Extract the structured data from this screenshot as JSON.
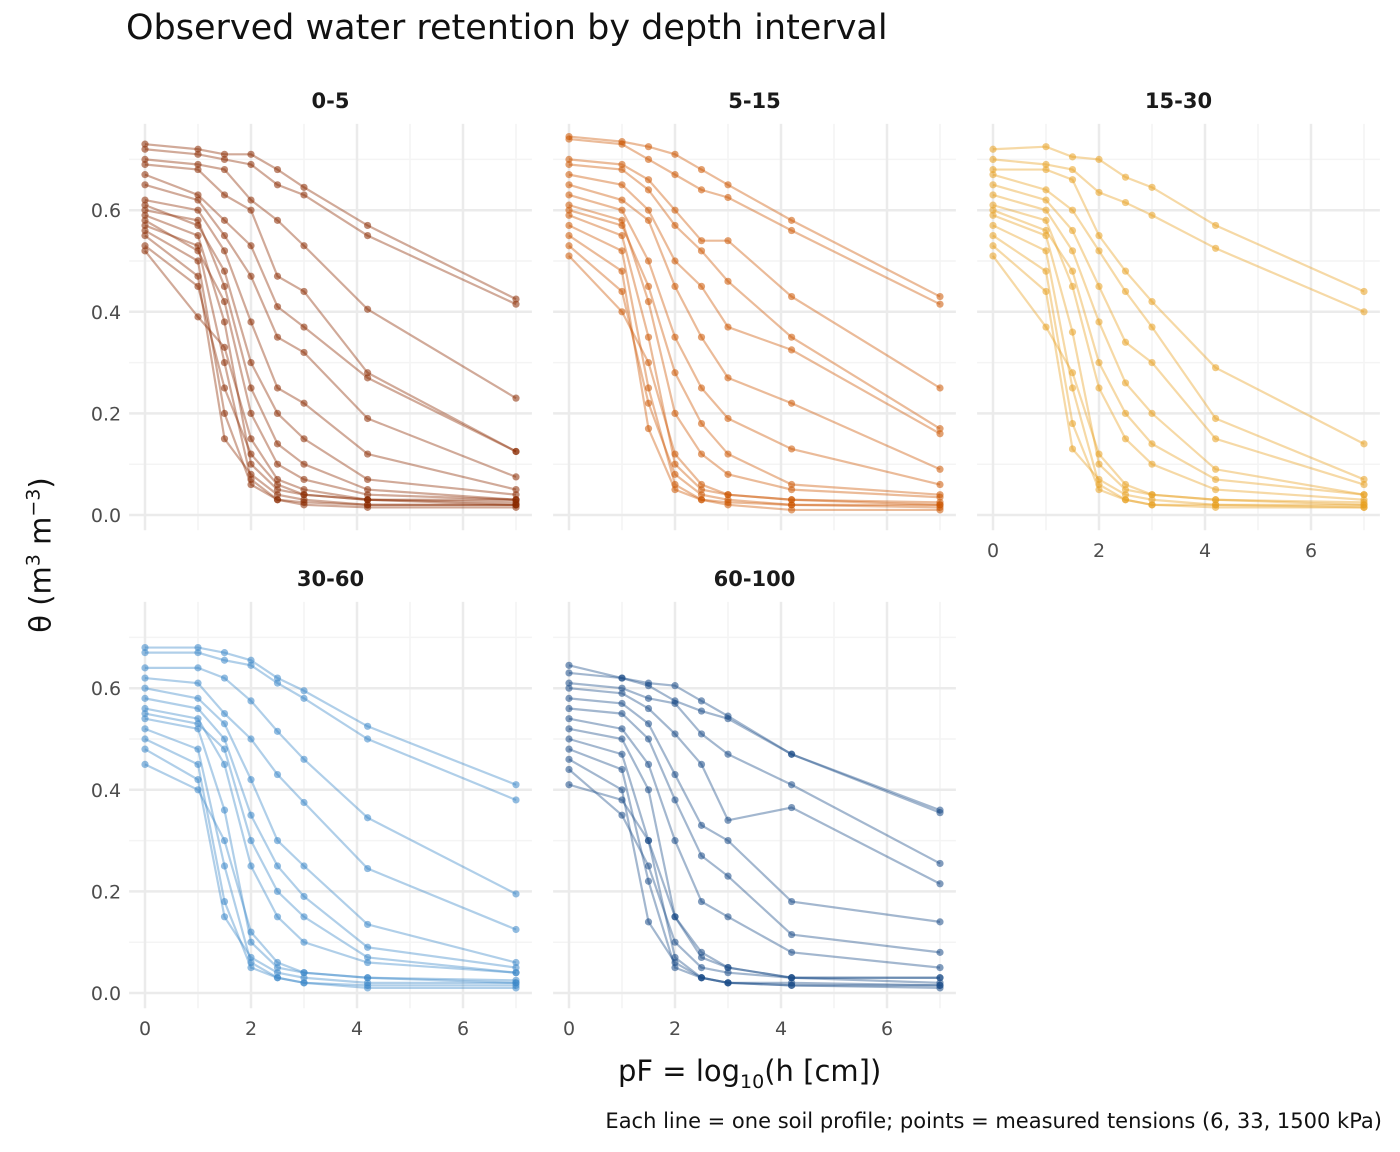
{
  "chart_data": {
    "type": "line",
    "title": "Observed water retention by depth interval",
    "caption": "Each line = one soil profile; points = measured tensions (6, 33, 1500 kPa)",
    "xlabel": {
      "prefix": "pF = log",
      "sub": "10",
      "suffix": "(h [cm])"
    },
    "ylabel": {
      "prefix": "θ (m",
      "sup1": "3",
      "mid": " m",
      "sup2": "−3",
      "suffix": ")"
    },
    "xlim": [
      -0.3,
      7.3
    ],
    "ylim": [
      -0.03,
      0.77
    ],
    "x_ticks": [
      0,
      2,
      4,
      6
    ],
    "x_tick_labels": [
      "0",
      "2",
      "4",
      "6"
    ],
    "y_ticks": [
      0,
      0.2,
      0.4,
      0.6
    ],
    "y_tick_labels": [
      "0.0",
      "0.2",
      "0.4",
      "0.6"
    ],
    "grid": true,
    "x": [
      0,
      1,
      1.5,
      2,
      2.5,
      3,
      4.2,
      7
    ],
    "facets": [
      {
        "label": "0-5",
        "color": "#8B2A00",
        "profiles": [
          [
            0.73,
            0.72,
            0.71,
            0.71,
            0.68,
            0.645,
            0.57,
            0.425
          ],
          [
            0.72,
            0.71,
            0.7,
            0.69,
            0.65,
            0.63,
            0.55,
            0.415
          ],
          [
            0.7,
            0.69,
            0.68,
            0.62,
            0.58,
            0.53,
            0.405,
            0.23
          ],
          [
            0.69,
            0.68,
            0.63,
            0.6,
            0.47,
            0.44,
            0.28,
            0.125
          ],
          [
            0.67,
            0.63,
            0.58,
            0.53,
            0.41,
            0.37,
            0.27,
            0.125
          ],
          [
            0.65,
            0.62,
            0.55,
            0.47,
            0.35,
            0.32,
            0.19,
            0.075
          ],
          [
            0.62,
            0.6,
            0.52,
            0.38,
            0.25,
            0.22,
            0.12,
            0.05
          ],
          [
            0.61,
            0.57,
            0.48,
            0.3,
            0.2,
            0.15,
            0.07,
            0.04
          ],
          [
            0.6,
            0.58,
            0.45,
            0.25,
            0.14,
            0.1,
            0.05,
            0.03
          ],
          [
            0.59,
            0.55,
            0.38,
            0.1,
            0.05,
            0.04,
            0.03,
            0.02
          ],
          [
            0.58,
            0.52,
            0.42,
            0.2,
            0.1,
            0.07,
            0.04,
            0.03
          ],
          [
            0.57,
            0.53,
            0.3,
            0.07,
            0.03,
            0.025,
            0.02,
            0.02
          ],
          [
            0.56,
            0.5,
            0.2,
            0.06,
            0.03,
            0.02,
            0.015,
            0.015
          ],
          [
            0.55,
            0.47,
            0.15,
            0.08,
            0.04,
            0.03,
            0.02,
            0.02
          ],
          [
            0.53,
            0.45,
            0.25,
            0.12,
            0.06,
            0.04,
            0.03,
            0.025
          ],
          [
            0.52,
            0.39,
            0.33,
            0.15,
            0.07,
            0.05,
            0.03,
            0.03
          ]
        ]
      },
      {
        "label": "5-15",
        "color": "#CC5500",
        "profiles": [
          [
            0.745,
            0.735,
            0.725,
            0.71,
            0.68,
            0.65,
            0.58,
            0.43
          ],
          [
            0.74,
            0.73,
            0.7,
            0.67,
            0.64,
            0.625,
            0.56,
            0.415
          ],
          [
            0.7,
            0.69,
            0.66,
            0.6,
            0.54,
            0.54,
            0.43,
            0.25
          ],
          [
            0.69,
            0.68,
            0.64,
            0.57,
            0.52,
            0.46,
            0.35,
            0.17
          ],
          [
            0.67,
            0.65,
            0.6,
            0.5,
            0.45,
            0.37,
            0.325,
            0.16
          ],
          [
            0.65,
            0.62,
            0.58,
            0.45,
            0.35,
            0.27,
            0.22,
            0.09
          ],
          [
            0.63,
            0.6,
            0.5,
            0.35,
            0.25,
            0.19,
            0.13,
            0.06
          ],
          [
            0.61,
            0.58,
            0.42,
            0.2,
            0.12,
            0.08,
            0.05,
            0.035
          ],
          [
            0.6,
            0.57,
            0.45,
            0.28,
            0.18,
            0.12,
            0.06,
            0.04
          ],
          [
            0.59,
            0.55,
            0.35,
            0.1,
            0.05,
            0.04,
            0.03,
            0.02
          ],
          [
            0.57,
            0.52,
            0.25,
            0.06,
            0.03,
            0.025,
            0.02,
            0.015
          ],
          [
            0.55,
            0.48,
            0.17,
            0.05,
            0.03,
            0.02,
            0.01,
            0.01
          ],
          [
            0.53,
            0.44,
            0.22,
            0.08,
            0.04,
            0.03,
            0.02,
            0.02
          ],
          [
            0.51,
            0.4,
            0.3,
            0.12,
            0.06,
            0.04,
            0.03,
            0.025
          ]
        ]
      },
      {
        "label": "15-30",
        "color": "#E8A020",
        "profiles": [
          [
            0.72,
            0.725,
            0.705,
            0.7,
            0.665,
            0.645,
            0.57,
            0.44
          ],
          [
            0.7,
            0.69,
            0.68,
            0.635,
            0.615,
            0.59,
            0.525,
            0.4
          ],
          [
            0.68,
            0.68,
            0.66,
            0.55,
            0.48,
            0.42,
            0.29,
            0.14
          ],
          [
            0.67,
            0.64,
            0.6,
            0.52,
            0.44,
            0.37,
            0.19,
            0.07
          ],
          [
            0.65,
            0.62,
            0.56,
            0.45,
            0.34,
            0.3,
            0.15,
            0.06
          ],
          [
            0.63,
            0.6,
            0.52,
            0.38,
            0.26,
            0.2,
            0.09,
            0.04
          ],
          [
            0.61,
            0.58,
            0.45,
            0.25,
            0.15,
            0.1,
            0.05,
            0.03
          ],
          [
            0.6,
            0.56,
            0.48,
            0.3,
            0.2,
            0.14,
            0.07,
            0.04
          ],
          [
            0.59,
            0.55,
            0.36,
            0.1,
            0.05,
            0.04,
            0.03,
            0.02
          ],
          [
            0.57,
            0.52,
            0.25,
            0.06,
            0.03,
            0.02,
            0.02,
            0.015
          ],
          [
            0.55,
            0.48,
            0.18,
            0.05,
            0.03,
            0.02,
            0.015,
            0.015
          ],
          [
            0.53,
            0.44,
            0.13,
            0.07,
            0.04,
            0.03,
            0.02,
            0.02
          ],
          [
            0.51,
            0.37,
            0.28,
            0.12,
            0.06,
            0.04,
            0.03,
            0.025
          ]
        ]
      },
      {
        "label": "30-60",
        "color": "#3A86C8",
        "profiles": [
          [
            0.68,
            0.68,
            0.67,
            0.655,
            0.62,
            0.595,
            0.525,
            0.41
          ],
          [
            0.67,
            0.67,
            0.655,
            0.645,
            0.61,
            0.58,
            0.5,
            0.38
          ],
          [
            0.64,
            0.64,
            0.62,
            0.575,
            0.515,
            0.46,
            0.345,
            0.195
          ],
          [
            0.62,
            0.61,
            0.55,
            0.5,
            0.43,
            0.375,
            0.245,
            0.125
          ],
          [
            0.6,
            0.58,
            0.53,
            0.42,
            0.3,
            0.25,
            0.135,
            0.06
          ],
          [
            0.58,
            0.56,
            0.5,
            0.35,
            0.25,
            0.19,
            0.09,
            0.05
          ],
          [
            0.56,
            0.54,
            0.45,
            0.25,
            0.15,
            0.1,
            0.06,
            0.04
          ],
          [
            0.55,
            0.53,
            0.48,
            0.3,
            0.2,
            0.15,
            0.07,
            0.04
          ],
          [
            0.54,
            0.52,
            0.36,
            0.1,
            0.05,
            0.04,
            0.03,
            0.02
          ],
          [
            0.52,
            0.48,
            0.25,
            0.06,
            0.03,
            0.02,
            0.015,
            0.015
          ],
          [
            0.5,
            0.45,
            0.18,
            0.05,
            0.03,
            0.02,
            0.01,
            0.01
          ],
          [
            0.48,
            0.42,
            0.15,
            0.07,
            0.04,
            0.03,
            0.02,
            0.02
          ],
          [
            0.45,
            0.4,
            0.3,
            0.12,
            0.06,
            0.04,
            0.03,
            0.025
          ]
        ]
      },
      {
        "label": "60-100",
        "color": "#1A4A86",
        "profiles": [
          [
            0.645,
            0.62,
            0.61,
            0.605,
            0.575,
            0.545,
            0.47,
            0.36
          ],
          [
            0.63,
            0.62,
            0.605,
            0.575,
            0.555,
            0.54,
            0.47,
            0.355
          ],
          [
            0.61,
            0.6,
            0.58,
            0.57,
            0.51,
            0.47,
            0.41,
            0.255
          ],
          [
            0.6,
            0.59,
            0.56,
            0.51,
            0.45,
            0.34,
            0.365,
            0.215
          ],
          [
            0.58,
            0.57,
            0.53,
            0.43,
            0.33,
            0.3,
            0.18,
            0.14
          ],
          [
            0.56,
            0.55,
            0.5,
            0.38,
            0.27,
            0.23,
            0.115,
            0.08
          ],
          [
            0.54,
            0.52,
            0.45,
            0.3,
            0.18,
            0.15,
            0.08,
            0.05
          ],
          [
            0.52,
            0.5,
            0.4,
            0.15,
            0.07,
            0.05,
            0.03,
            0.03
          ],
          [
            0.5,
            0.47,
            0.3,
            0.07,
            0.03,
            0.02,
            0.02,
            0.015
          ],
          [
            0.48,
            0.44,
            0.22,
            0.05,
            0.03,
            0.02,
            0.015,
            0.01
          ],
          [
            0.46,
            0.4,
            0.14,
            0.06,
            0.03,
            0.02,
            0.015,
            0.015
          ],
          [
            0.44,
            0.35,
            0.25,
            0.1,
            0.05,
            0.04,
            0.03,
            0.02
          ],
          [
            0.41,
            0.38,
            0.3,
            0.15,
            0.08,
            0.05,
            0.03,
            0.03
          ]
        ]
      }
    ]
  }
}
